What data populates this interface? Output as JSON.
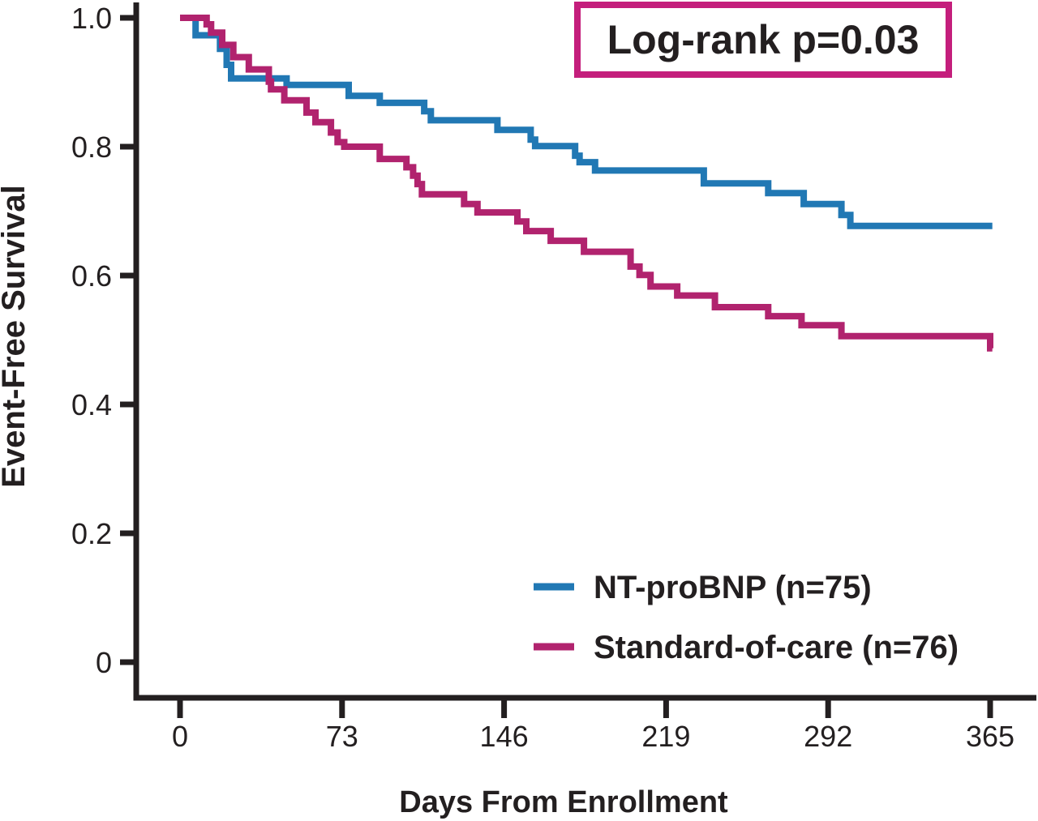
{
  "chart_data": {
    "type": "line",
    "subtype": "kaplan-meier-step-curve",
    "title": "",
    "xlabel": "Days From Enrollment",
    "ylabel": "Event-Free Survival",
    "xlim": [
      0,
      365
    ],
    "ylim": [
      0,
      1.0
    ],
    "xticks": [
      0,
      73,
      146,
      219,
      292,
      365
    ],
    "yticks": [
      "1.0",
      "0.8",
      "0.6",
      "0.4",
      "0.2",
      "0"
    ],
    "ytick_values": [
      1.0,
      0.8,
      0.6,
      0.4,
      0.2,
      0
    ],
    "grid": false,
    "axis_color": "#231f20",
    "annotation": {
      "text": "Log-rank p=0.03",
      "border_color": "#c41e7c",
      "position": "top-right-inside"
    },
    "legend": {
      "position": "bottom-right-inside"
    },
    "series": [
      {
        "id": "nt-probnp",
        "name": "NT-proBNP (n=75)",
        "color": "#2178b4",
        "n": 75,
        "points_format": "[day, event_free_survival]",
        "points": [
          [
            0,
            1.0
          ],
          [
            7,
            0.973
          ],
          [
            18,
            0.952
          ],
          [
            21,
            0.927
          ],
          [
            23,
            0.906
          ],
          [
            48,
            0.896
          ],
          [
            76,
            0.879
          ],
          [
            90,
            0.868
          ],
          [
            110,
            0.855
          ],
          [
            113,
            0.841
          ],
          [
            143,
            0.826
          ],
          [
            158,
            0.811
          ],
          [
            160,
            0.801
          ],
          [
            178,
            0.786
          ],
          [
            180,
            0.776
          ],
          [
            187,
            0.763
          ],
          [
            236,
            0.743
          ],
          [
            265,
            0.728
          ],
          [
            281,
            0.711
          ],
          [
            298,
            0.694
          ],
          [
            302,
            0.677
          ]
        ],
        "end_t": 366
      },
      {
        "id": "standard-of-care",
        "name": "Standard-of-care (n=76)",
        "color": "#b1236e",
        "n": 76,
        "points_format": "[day, event_free_survival]",
        "points": [
          [
            0,
            1.0
          ],
          [
            12,
            0.99
          ],
          [
            14,
            0.977
          ],
          [
            19,
            0.958
          ],
          [
            24,
            0.939
          ],
          [
            31,
            0.92
          ],
          [
            40,
            0.901
          ],
          [
            41,
            0.889
          ],
          [
            47,
            0.872
          ],
          [
            57,
            0.853
          ],
          [
            61,
            0.838
          ],
          [
            68,
            0.822
          ],
          [
            71,
            0.807
          ],
          [
            74,
            0.8
          ],
          [
            90,
            0.781
          ],
          [
            102,
            0.768
          ],
          [
            105,
            0.755
          ],
          [
            107,
            0.742
          ],
          [
            109,
            0.726
          ],
          [
            128,
            0.711
          ],
          [
            134,
            0.698
          ],
          [
            152,
            0.684
          ],
          [
            156,
            0.669
          ],
          [
            167,
            0.654
          ],
          [
            182,
            0.637
          ],
          [
            203,
            0.614
          ],
          [
            207,
            0.601
          ],
          [
            212,
            0.583
          ],
          [
            224,
            0.569
          ],
          [
            241,
            0.551
          ],
          [
            265,
            0.537
          ],
          [
            280,
            0.523
          ],
          [
            298,
            0.506
          ],
          [
            365,
            0.487
          ]
        ],
        "end_t": 366
      }
    ]
  }
}
